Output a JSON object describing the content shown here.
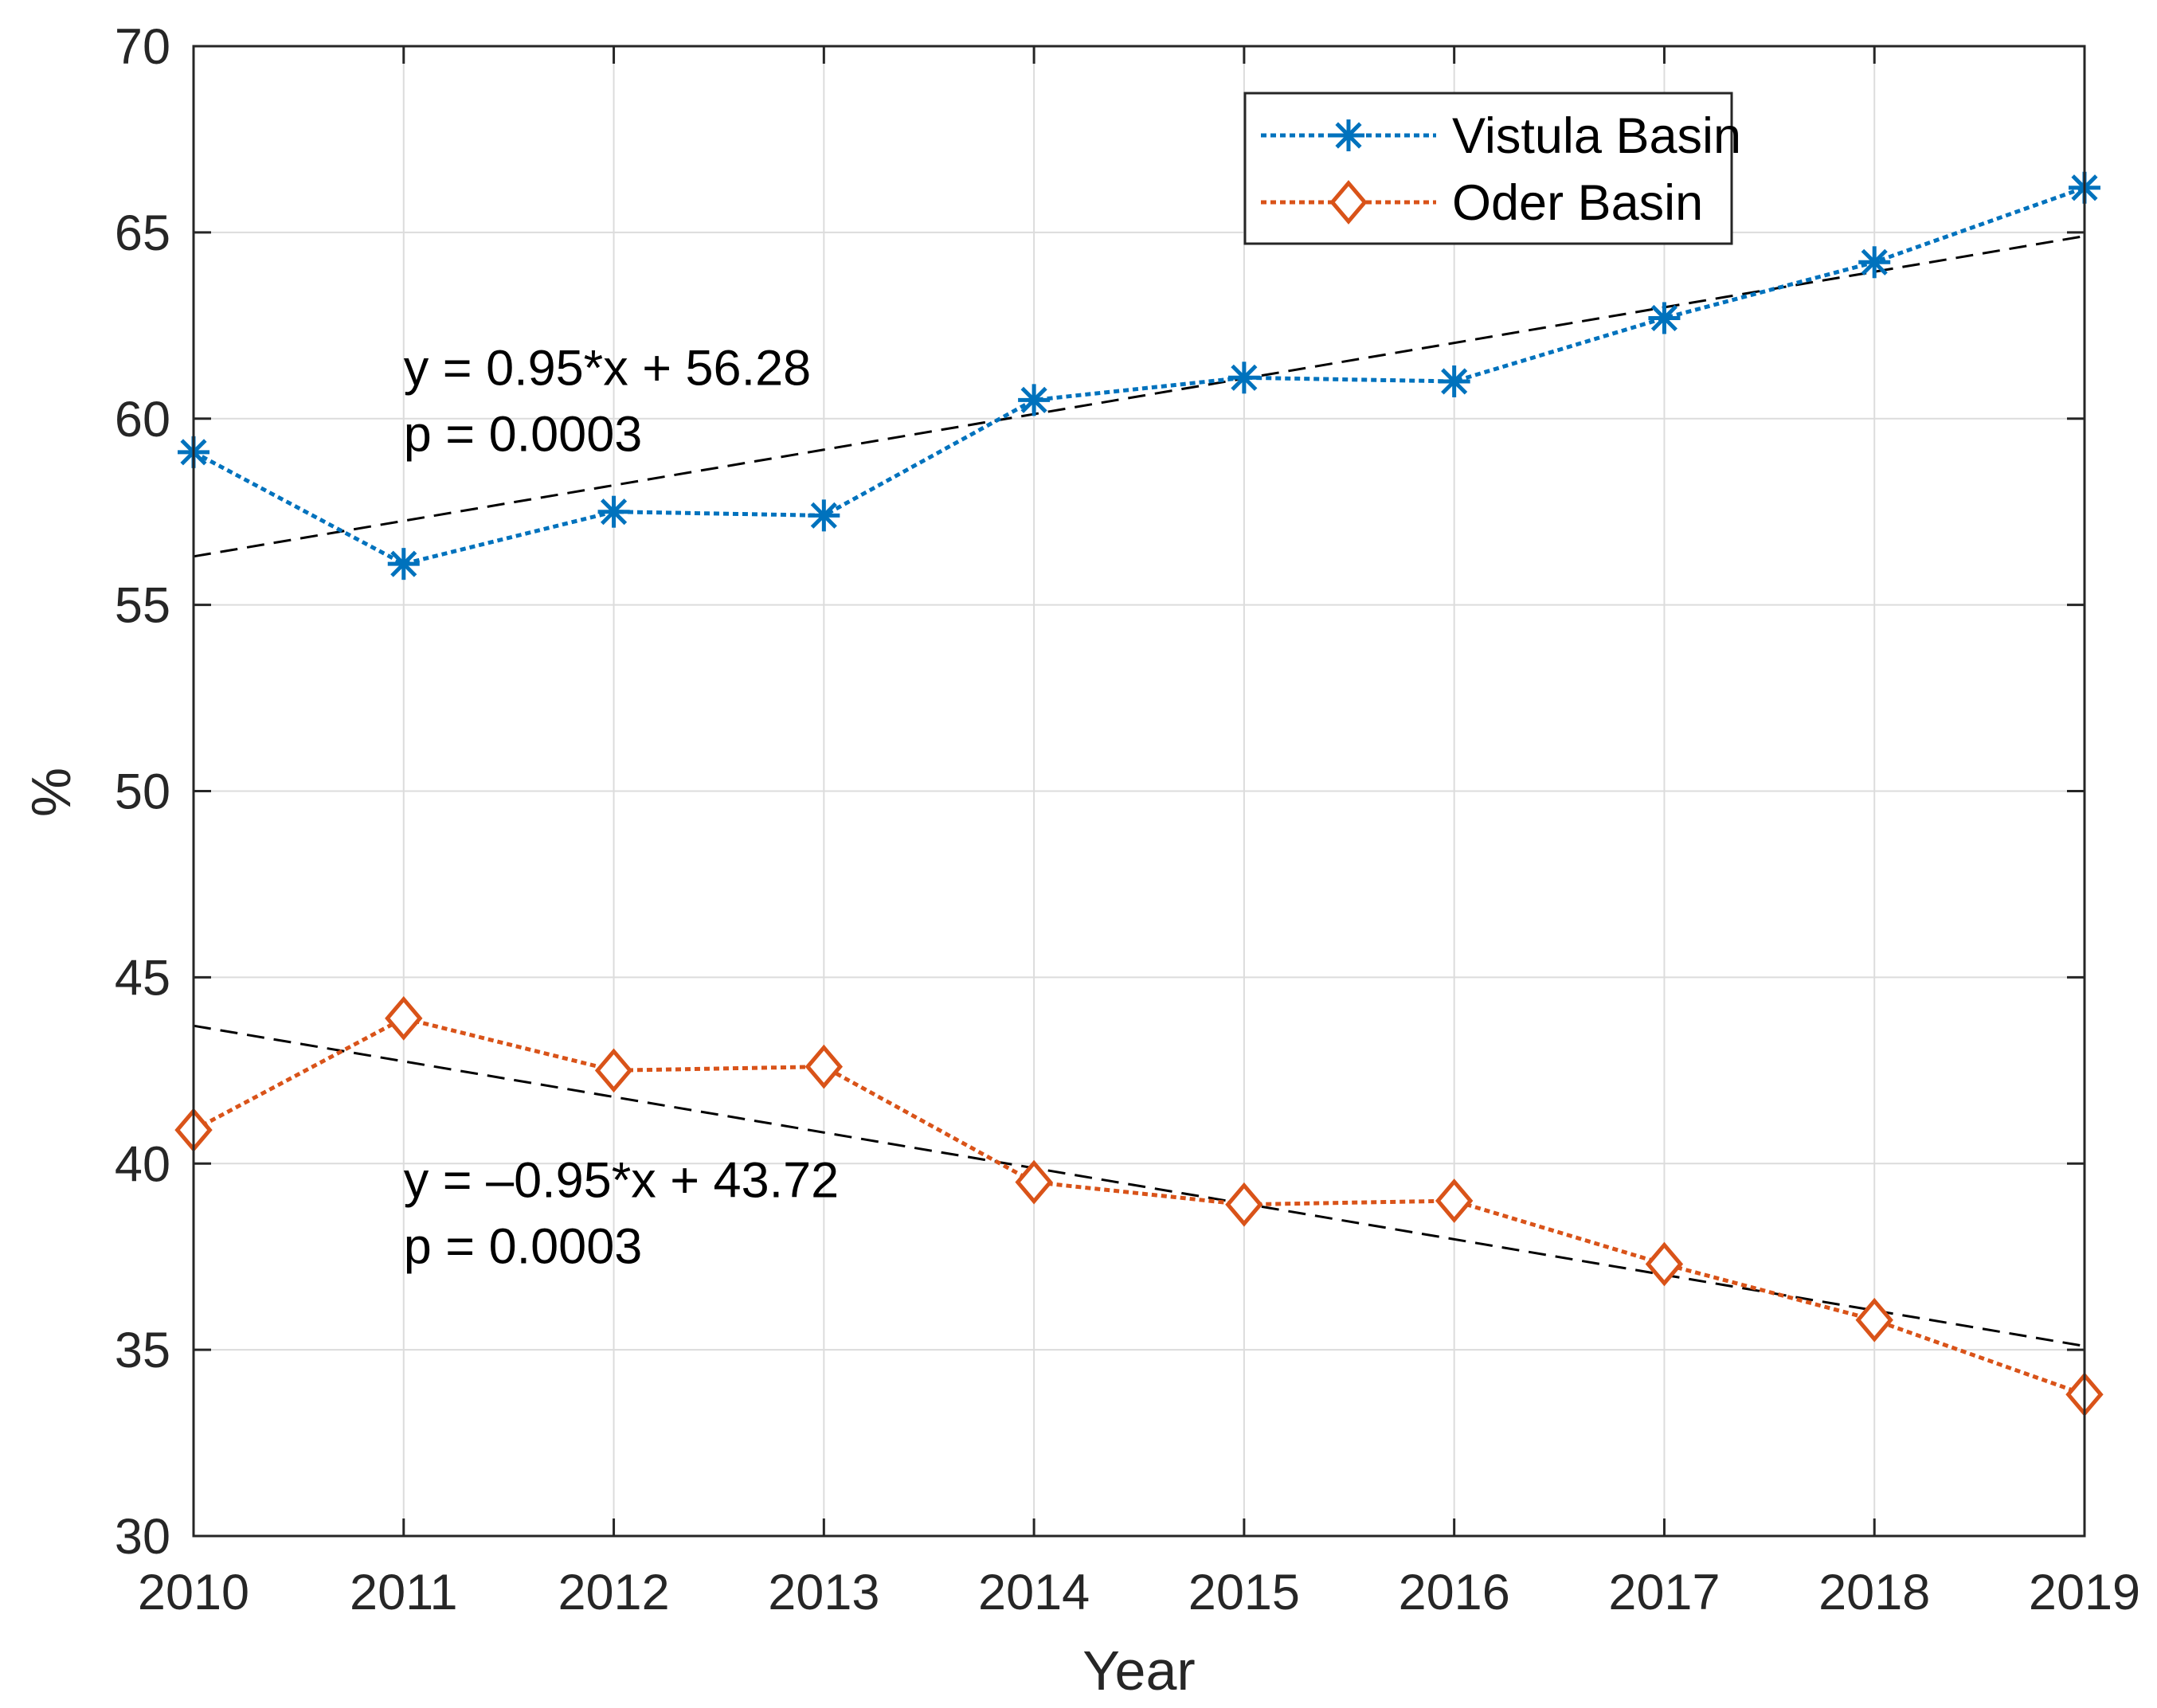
{
  "chart_data": {
    "type": "line",
    "xlabel": "Year",
    "ylabel": "%",
    "xlim": [
      2010,
      2019
    ],
    "ylim": [
      30,
      70
    ],
    "x_ticks": [
      2010,
      2011,
      2012,
      2013,
      2014,
      2015,
      2016,
      2017,
      2018,
      2019
    ],
    "y_ticks": [
      30,
      35,
      40,
      45,
      50,
      55,
      60,
      65,
      70
    ],
    "grid": true,
    "legend_position": "top-right",
    "x": [
      2010,
      2011,
      2012,
      2013,
      2014,
      2015,
      2016,
      2017,
      2018,
      2019
    ],
    "series": [
      {
        "name": "Vistula Basin",
        "marker": "asterisk",
        "color": "#0072BD",
        "values": [
          59.1,
          56.1,
          57.5,
          57.4,
          60.5,
          61.1,
          61.0,
          62.7,
          64.2,
          66.2
        ]
      },
      {
        "name": "Oder Basin",
        "marker": "diamond",
        "color": "#D95319",
        "values": [
          40.9,
          43.9,
          42.5,
          42.6,
          39.5,
          38.9,
          39.0,
          37.3,
          35.8,
          33.8
        ]
      }
    ],
    "trendlines": [
      {
        "color": "#000000",
        "start": [
          2010,
          56.3
        ],
        "end": [
          2019,
          64.9
        ]
      },
      {
        "color": "#000000",
        "start": [
          2010,
          43.7
        ],
        "end": [
          2019,
          35.1
        ]
      }
    ],
    "annotations": [
      {
        "lines": [
          "y = 0.95*x + 56.28",
          "p = 0.0003"
        ],
        "x": 2011,
        "y": 60.9
      },
      {
        "lines": [
          "y = –0.95*x + 43.72",
          "p = 0.0003"
        ],
        "x": 2011,
        "y": 39.1
      }
    ]
  }
}
